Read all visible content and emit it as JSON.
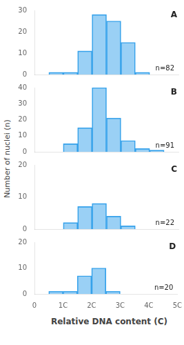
{
  "xlabel": "Relative DNA content (C)",
  "ylabel": "Number of nuclei (n)",
  "chart_data": [
    {
      "type": "histogram",
      "title": "A",
      "annotation": "n=82",
      "bins": [
        0.5,
        1.0,
        1.5,
        2.0,
        2.5,
        3.0,
        3.5,
        4.0
      ],
      "values": [
        1,
        1,
        11,
        28,
        25,
        15,
        1
      ],
      "xlim": [
        0,
        5
      ],
      "xticks": [
        0,
        {
          "value": 1,
          "label": "1C"
        },
        {
          "value": 2,
          "label": "2C"
        },
        {
          "value": 3,
          "label": "3C"
        },
        {
          "value": 4,
          "label": "4C"
        },
        {
          "value": 5,
          "label": "5C"
        }
      ],
      "ylim": [
        0,
        30
      ],
      "yticks": [
        0,
        10,
        20,
        30
      ],
      "grid": false,
      "tick_labels": "y"
    },
    {
      "type": "histogram",
      "title": "B",
      "annotation": "n=91",
      "bins": [
        1.0,
        1.5,
        2.0,
        2.5,
        3.0,
        3.5,
        4.0,
        4.5
      ],
      "values": [
        5,
        15,
        40,
        21,
        7,
        2,
        1
      ],
      "xlim": [
        0,
        5
      ],
      "xticks": [
        0,
        {
          "value": 1,
          "label": "1C"
        },
        {
          "value": 2,
          "label": "2C"
        },
        {
          "value": 3,
          "label": "3C"
        },
        {
          "value": 4,
          "label": "4C"
        },
        {
          "value": 5,
          "label": "5C"
        }
      ],
      "ylim": [
        0,
        40
      ],
      "yticks": [
        0,
        10,
        20,
        30,
        40
      ],
      "grid": false,
      "tick_labels": "y"
    },
    {
      "type": "histogram",
      "title": "C",
      "annotation": "n=22",
      "bins": [
        1.0,
        1.5,
        2.0,
        2.5,
        3.0,
        3.5
      ],
      "values": [
        2,
        7,
        8,
        4,
        1
      ],
      "xlim": [
        0,
        5
      ],
      "xticks": [
        0,
        {
          "value": 1,
          "label": "1C"
        },
        {
          "value": 2,
          "label": "2C"
        },
        {
          "value": 3,
          "label": "3C"
        },
        {
          "value": 4,
          "label": "4C"
        },
        {
          "value": 5,
          "label": "5C"
        }
      ],
      "ylim": [
        0,
        20
      ],
      "yticks": [
        0,
        10,
        20
      ],
      "grid": false,
      "tick_labels": "y"
    },
    {
      "type": "histogram",
      "title": "D",
      "annotation": "n=20",
      "bins": [
        0.5,
        1.0,
        1.5,
        2.0,
        2.5,
        3.0
      ],
      "values": [
        1,
        1,
        7,
        10,
        1
      ],
      "xlim": [
        0,
        5
      ],
      "xticks": [
        0,
        {
          "value": 1,
          "label": "1C"
        },
        {
          "value": 2,
          "label": "2C"
        },
        {
          "value": 3,
          "label": "3C"
        },
        {
          "value": 4,
          "label": "4C"
        },
        {
          "value": 5,
          "label": "5C"
        }
      ],
      "ylim": [
        0,
        20
      ],
      "yticks": [
        0,
        10,
        20
      ],
      "grid": false
    }
  ]
}
